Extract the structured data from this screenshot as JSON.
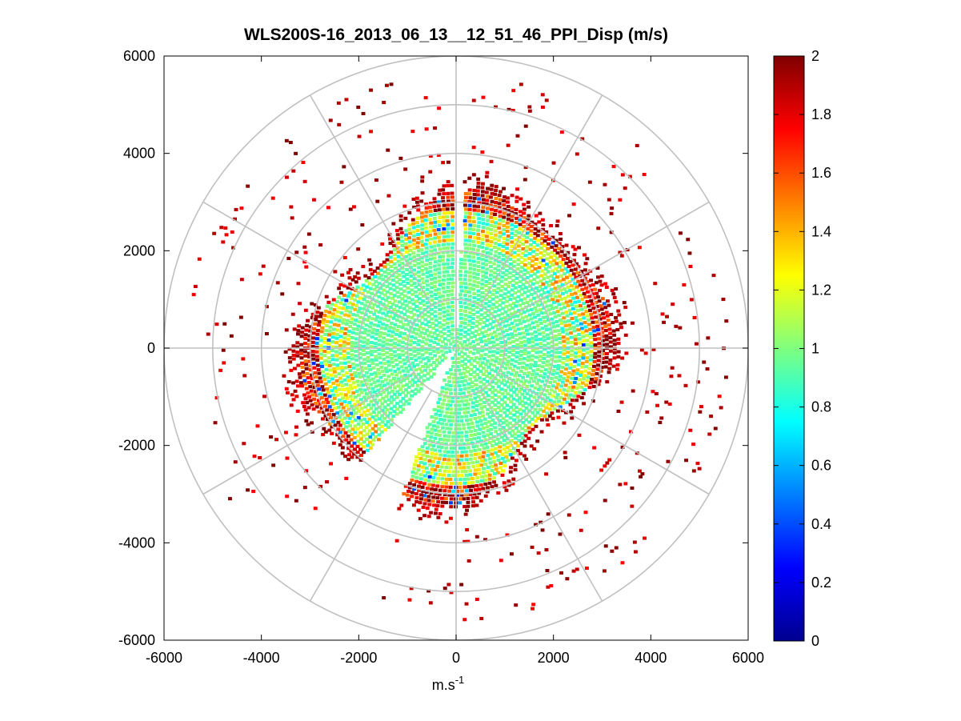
{
  "chart_data": {
    "type": "heatmap",
    "subtype": "polar-ppi-scan",
    "title": "WLS200S-16_2013_06_13__12_51_46_PPI_Disp (m/s)",
    "xlabel": "m.s",
    "xlabel_exponent": "-1",
    "ylabel": "",
    "xlim": [
      -6000,
      6000
    ],
    "ylim": [
      -6000,
      6000
    ],
    "xticks": [
      -6000,
      -4000,
      -2000,
      0,
      2000,
      4000,
      6000
    ],
    "yticks": [
      6000,
      4000,
      2000,
      0,
      -2000,
      -4000,
      -6000
    ],
    "xtick_labels": [
      "-6000",
      "-4000",
      "-2000",
      "0",
      "2000",
      "4000",
      "6000"
    ],
    "ytick_labels": [
      "6000",
      "4000",
      "2000",
      "0",
      "-2000",
      "-4000",
      "-6000"
    ],
    "grid": "polar",
    "range_rings_m": [
      1000,
      2000,
      3000,
      4000,
      5000,
      6000
    ],
    "spoke_angles_deg": [
      0,
      30,
      60,
      90,
      120,
      150,
      180,
      210,
      240,
      270,
      300,
      330
    ],
    "colorbar": {
      "colormap": "jet",
      "clim": [
        0,
        2
      ],
      "ticks": [
        0,
        0.2,
        0.4,
        0.6,
        0.8,
        1,
        1.2,
        1.4,
        1.6,
        1.8,
        2
      ],
      "tick_labels": [
        "0",
        "0.2",
        "0.4",
        "0.6",
        "0.8",
        "1",
        "1.2",
        "1.4",
        "1.6",
        "1.8",
        "2"
      ]
    },
    "data_description_regions": [
      {
        "range_m": [
          0,
          2200
        ],
        "typical_value": 0.95
      },
      {
        "range_m": [
          2200,
          2800
        ],
        "typical_value": 1.15
      },
      {
        "range_m": [
          2800,
          3300
        ],
        "typical_value": 1.85
      },
      {
        "range_m": [
          3300,
          5500
        ],
        "typical_value": 2.0
      }
    ],
    "gaps_azimuth_deg": [
      [
        0,
        3
      ],
      [
        200,
        220
      ]
    ]
  }
}
